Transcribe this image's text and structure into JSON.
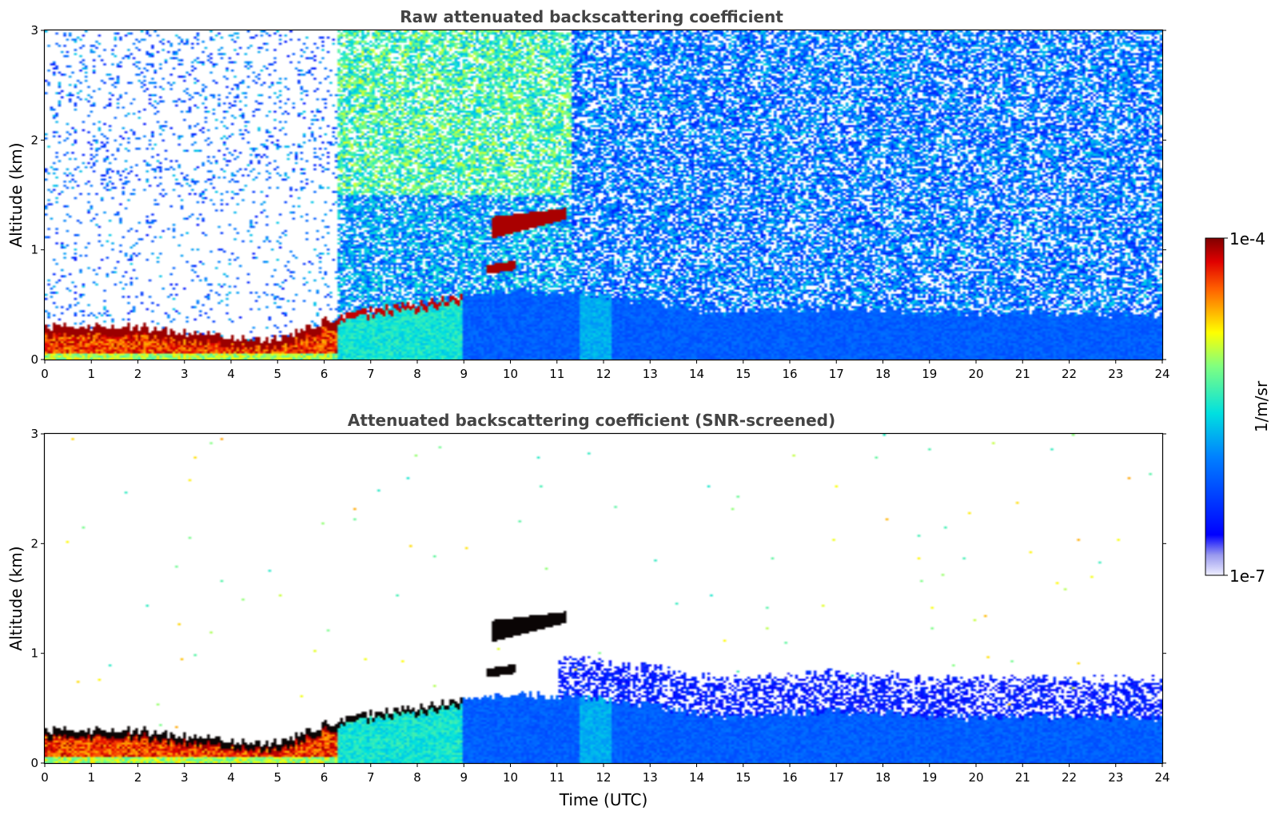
{
  "chart_data": [
    {
      "type": "heatmap",
      "title": "Raw attenuated backscattering coefficient",
      "xlabel": "",
      "ylabel": "Altitude (km)",
      "xlim": [
        0,
        24
      ],
      "ylim": [
        0,
        3
      ],
      "x_ticks": [
        "0",
        "1",
        "2",
        "3",
        "4",
        "5",
        "6",
        "7",
        "8",
        "9",
        "10",
        "11",
        "12",
        "13",
        "14",
        "15",
        "16",
        "17",
        "18",
        "19",
        "20",
        "21",
        "22",
        "23",
        "24"
      ],
      "y_ticks": [
        "0",
        "1",
        "2",
        "3"
      ],
      "screened": false,
      "features": {
        "boundary_layer_top_km": [
          [
            0,
            0.3
          ],
          [
            1,
            0.3
          ],
          [
            2,
            0.3
          ],
          [
            3,
            0.25
          ],
          [
            4,
            0.2
          ],
          [
            5,
            0.18
          ],
          [
            6,
            0.35
          ],
          [
            7,
            0.45
          ],
          [
            8,
            0.5
          ],
          [
            9,
            0.58
          ],
          [
            10,
            0.62
          ],
          [
            11,
            0.62
          ],
          [
            12,
            0.58
          ],
          [
            13,
            0.52
          ],
          [
            14,
            0.45
          ],
          [
            15,
            0.43
          ],
          [
            16,
            0.45
          ],
          [
            17,
            0.48
          ],
          [
            18,
            0.46
          ],
          [
            19,
            0.42
          ],
          [
            20,
            0.42
          ],
          [
            21,
            0.42
          ],
          [
            22,
            0.42
          ],
          [
            23,
            0.42
          ],
          [
            23.9,
            0.42
          ]
        ],
        "cloud_layers": [
          {
            "t_start": 9.6,
            "t_end": 11.2,
            "base_km": [
              1.1,
              1.28
            ],
            "top_km": [
              1.3,
              1.38
            ]
          },
          {
            "t_start": 9.5,
            "t_end": 10.1,
            "base_km": [
              0.78,
              0.82
            ],
            "top_km": [
              0.86,
              0.9
            ]
          }
        ]
      }
    },
    {
      "type": "heatmap",
      "title": "Attenuated backscattering coefficient (SNR-screened)",
      "xlabel": "Time (UTC)",
      "ylabel": "Altitude (km)",
      "xlim": [
        0,
        24
      ],
      "ylim": [
        0,
        3
      ],
      "x_ticks": [
        "0",
        "1",
        "2",
        "3",
        "4",
        "5",
        "6",
        "7",
        "8",
        "9",
        "10",
        "11",
        "12",
        "13",
        "14",
        "15",
        "16",
        "17",
        "18",
        "19",
        "20",
        "21",
        "22",
        "23",
        "24"
      ],
      "y_ticks": [
        "0",
        "1",
        "2",
        "3"
      ],
      "screened": true
    }
  ],
  "colorbar": {
    "label": "1/m/sr",
    "max_label": "1e-4",
    "min_label": "1e-7",
    "range": [
      1e-07,
      0.0001
    ],
    "scale": "log",
    "colormap": "jet"
  }
}
